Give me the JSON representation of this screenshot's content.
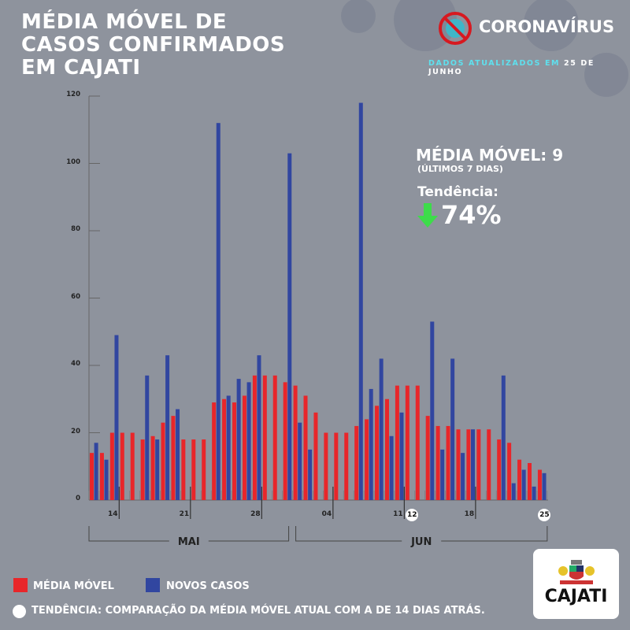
{
  "header": {
    "title": "MÉDIA MÓVEL DE CASOS CONFIRMADOS EM CAJATI",
    "brand": "CORONAVÍRUS",
    "updated_label": "DADOS ATUALIZADOS EM",
    "updated_date": "25 DE JUNHO"
  },
  "summary": {
    "moving_avg": "MÉDIA MÓVEL: 9",
    "moving_avg_sub": "(ÚLTIMOS 7 DIAS)",
    "trend_label": "Tendência:",
    "trend_value": "74%",
    "trend_direction": "down"
  },
  "legend": {
    "red": "MÉDIA MÓVEL",
    "blue": "NOVOS CASOS",
    "note": "TENDÊNCIA: COMPARAÇÃO DA MÉDIA MÓVEL ATUAL COM A DE 14 DIAS ATRÁS."
  },
  "logo": {
    "text": "CAJATI"
  },
  "colors": {
    "red": "#e8262a",
    "blue": "#3146a0",
    "cyan": "#5ee0ee",
    "green": "#3ddc4a"
  },
  "chart_data": {
    "type": "bar",
    "title": "MÉDIA MÓVEL DE CASOS CONFIRMADOS EM CAJATI",
    "ylim": [
      0,
      120
    ],
    "yticks": [
      "0",
      "20",
      "40",
      "60",
      "80",
      "100",
      "120"
    ],
    "x_start": "May 12",
    "x_end": "June 25",
    "day_labels": [
      {
        "slot": 2,
        "text": "14"
      },
      {
        "slot": 9,
        "text": "21"
      },
      {
        "slot": 16,
        "text": "28"
      },
      {
        "slot": 23,
        "text": "04"
      },
      {
        "slot": 30,
        "text": "11"
      },
      {
        "slot": 31,
        "text": "12",
        "highlight": true
      },
      {
        "slot": 37,
        "text": "18"
      },
      {
        "slot": 44,
        "text": "25",
        "highlight": true
      }
    ],
    "months": [
      {
        "text": "MAI",
        "from": 0,
        "to": 19
      },
      {
        "text": "JUN",
        "from": 20,
        "to": 44
      }
    ],
    "series": [
      {
        "name": "MÉDIA MÓVEL",
        "color": "#e8262a",
        "values": [
          14,
          14,
          20,
          20,
          20,
          18,
          19,
          23,
          25,
          18,
          18,
          18,
          29,
          30,
          29,
          31,
          37,
          37,
          37,
          35,
          34,
          31,
          26,
          20,
          20,
          20,
          22,
          24,
          28,
          30,
          34,
          34,
          34,
          25,
          22,
          22,
          21,
          21,
          21,
          21,
          18,
          17,
          12,
          11,
          9
        ]
      },
      {
        "name": "NOVOS CASOS",
        "color": "#3146a0",
        "values": [
          17,
          12,
          49,
          0,
          0,
          37,
          18,
          43,
          27,
          0,
          0,
          0,
          112,
          31,
          36,
          35,
          43,
          0,
          0,
          103,
          23,
          15,
          0,
          0,
          0,
          0,
          118,
          33,
          42,
          19,
          26,
          0,
          0,
          53,
          15,
          42,
          14,
          21,
          0,
          0,
          37,
          5,
          9,
          4,
          8
        ]
      }
    ]
  }
}
